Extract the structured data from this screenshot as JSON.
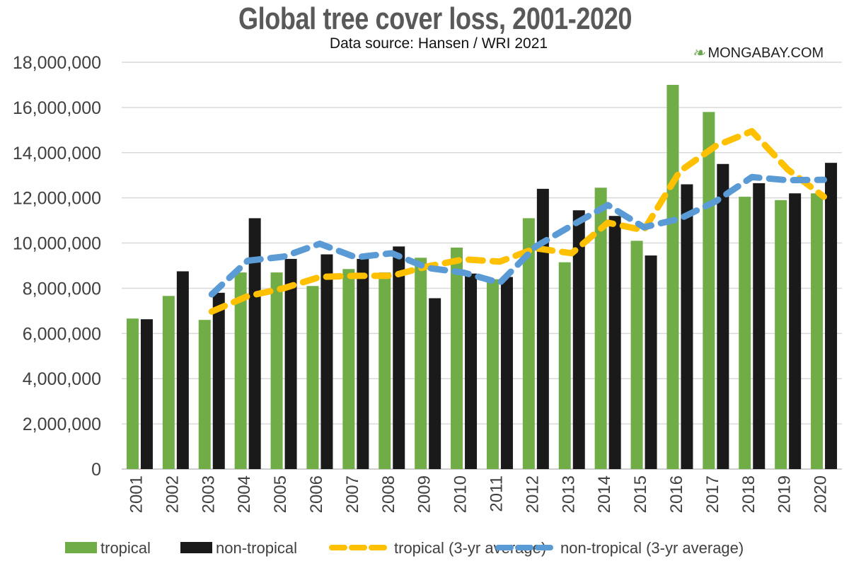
{
  "chart_data": {
    "type": "bar",
    "title": "Global tree cover loss, 2001-2020",
    "subtitle": "Data source: Hansen / WRI 2021",
    "brand": "MONGABAY.COM",
    "categories": [
      "2001",
      "2002",
      "2003",
      "2004",
      "2005",
      "2006",
      "2007",
      "2008",
      "2009",
      "2010",
      "2011",
      "2012",
      "2013",
      "2014",
      "2015",
      "2016",
      "2017",
      "2018",
      "2019",
      "2020"
    ],
    "ylim": [
      0,
      18000000
    ],
    "yticks": [
      0,
      2000000,
      4000000,
      6000000,
      8000000,
      10000000,
      12000000,
      14000000,
      16000000,
      18000000
    ],
    "ytick_labels": [
      "0",
      "2,000,000",
      "4,000,000",
      "6,000,000",
      "8,000,000",
      "10,000,000",
      "12,000,000",
      "14,000,000",
      "16,000,000",
      "18,000,000"
    ],
    "grid": true,
    "legend_position": "bottom",
    "series": [
      {
        "name": "tropical",
        "kind": "bar",
        "color": "#70ad47",
        "values": [
          6660000,
          7660000,
          6600000,
          8700000,
          8700000,
          8100000,
          8850000,
          8700000,
          9350000,
          9800000,
          8400000,
          11100000,
          9150000,
          12450000,
          10100000,
          17000000,
          15800000,
          12050000,
          11900000,
          12200000
        ]
      },
      {
        "name": "non-tropical",
        "kind": "bar",
        "color": "#1a1a1a",
        "values": [
          6630000,
          8750000,
          7800000,
          11100000,
          9300000,
          9500000,
          9300000,
          9850000,
          7560000,
          8650000,
          8500000,
          12400000,
          11450000,
          11200000,
          9450000,
          12600000,
          13500000,
          12650000,
          12200000,
          13550000
        ]
      },
      {
        "name": "tropical (3-yr average)",
        "kind": "dashed-line",
        "color": "#ffc000",
        "values": [
          null,
          null,
          6970000,
          7650000,
          8000000,
          8500000,
          8550000,
          8550000,
          8970000,
          9280000,
          9180000,
          9770000,
          9550000,
          10900000,
          10570000,
          13180000,
          14300000,
          14950000,
          13250000,
          12050000
        ]
      },
      {
        "name": "non-tropical (3-yr average)",
        "kind": "dashed-line",
        "color": "#5b9bd5",
        "values": [
          null,
          null,
          7730000,
          9220000,
          9400000,
          9970000,
          9370000,
          9550000,
          8900000,
          8690000,
          8240000,
          9850000,
          10780000,
          11680000,
          10700000,
          11080000,
          11850000,
          12920000,
          12780000,
          12800000
        ]
      }
    ]
  }
}
